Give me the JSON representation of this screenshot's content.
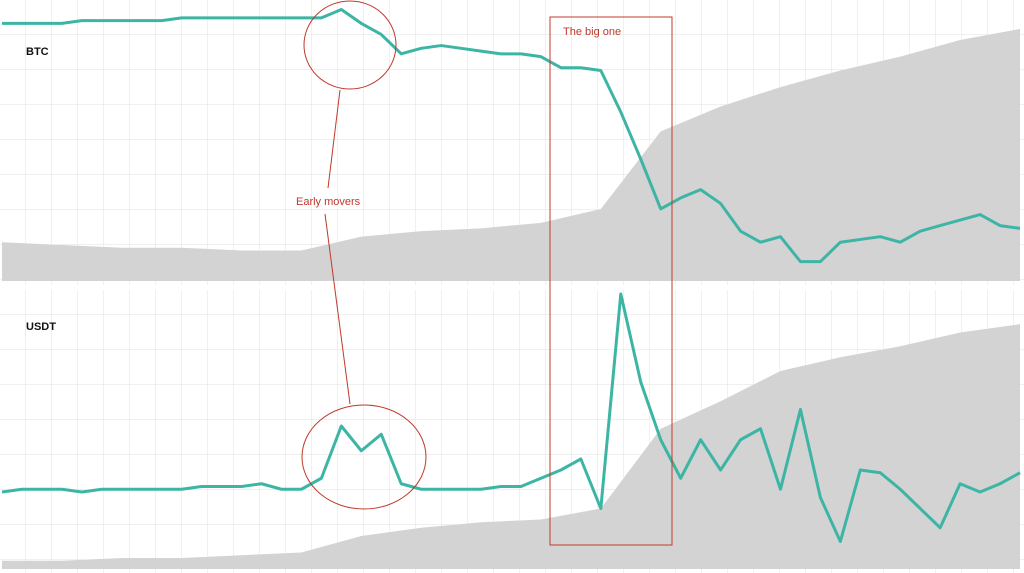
{
  "chart_data": [
    {
      "type": "line",
      "title": "BTC",
      "color": "#3db5a5",
      "x": [
        0,
        1,
        2,
        3,
        4,
        5,
        6,
        7,
        8,
        9,
        10,
        11,
        12,
        13,
        14,
        15,
        16,
        17,
        18,
        19,
        20,
        21,
        22,
        23,
        24,
        25,
        26,
        27,
        28,
        29,
        30,
        31,
        32,
        33,
        34,
        35,
        36,
        37,
        38,
        39,
        40,
        41,
        42,
        43,
        44,
        45,
        46,
        47,
        48,
        49,
        50,
        51
      ],
      "values": [
        93,
        93,
        93,
        93,
        94,
        94,
        94,
        94,
        94,
        95,
        95,
        95,
        95,
        95,
        95,
        95,
        95,
        98,
        93,
        89,
        82,
        84,
        85,
        84,
        83,
        82,
        82,
        81,
        77,
        77,
        76,
        61,
        44,
        26,
        30,
        33,
        28,
        18,
        14,
        16,
        7,
        7,
        14,
        15,
        16,
        14,
        18,
        20,
        22,
        24,
        20,
        19
      ],
      "area": {
        "color": "#d3d3d3",
        "x": [
          0,
          3,
          6,
          9,
          12,
          15,
          18,
          21,
          24,
          27,
          30,
          33,
          36,
          39,
          42,
          45,
          48,
          51
        ],
        "values": [
          14,
          13,
          12,
          12,
          11,
          11,
          16,
          18,
          19,
          21,
          26,
          54,
          63,
          70,
          76,
          81,
          87,
          91
        ]
      },
      "xlim": [
        0,
        51
      ],
      "ylim": [
        0,
        100
      ]
    },
    {
      "type": "line",
      "title": "USDT",
      "color": "#3db5a5",
      "x": [
        0,
        1,
        2,
        3,
        4,
        5,
        6,
        7,
        8,
        9,
        10,
        11,
        12,
        13,
        14,
        15,
        16,
        17,
        18,
        19,
        20,
        21,
        22,
        23,
        24,
        25,
        26,
        27,
        28,
        29,
        30,
        31,
        32,
        33,
        34,
        35,
        36,
        37,
        38,
        39,
        40,
        41,
        42,
        43,
        44,
        45,
        46,
        47,
        48,
        49,
        50,
        51
      ],
      "values": [
        28,
        29,
        29,
        29,
        28,
        29,
        29,
        29,
        29,
        29,
        30,
        30,
        30,
        31,
        29,
        29,
        33,
        52,
        43,
        49,
        31,
        29,
        29,
        29,
        29,
        30,
        30,
        33,
        36,
        40,
        22,
        100,
        68,
        47,
        33,
        47,
        36,
        47,
        51,
        29,
        58,
        26,
        10,
        36,
        35,
        29,
        22,
        15,
        31,
        28,
        31,
        35
      ],
      "area": {
        "color": "#d3d3d3",
        "x": [
          0,
          3,
          6,
          9,
          12,
          15,
          18,
          21,
          24,
          27,
          30,
          33,
          36,
          39,
          42,
          45,
          48,
          51
        ],
        "values": [
          3,
          3,
          4,
          4,
          5,
          6,
          12,
          15,
          17,
          18,
          22,
          51,
          61,
          72,
          77,
          81,
          86,
          89
        ]
      },
      "xlim": [
        0,
        51
      ],
      "ylim": [
        0,
        100
      ]
    }
  ],
  "annotations": [
    "The big one",
    "Early movers"
  ]
}
